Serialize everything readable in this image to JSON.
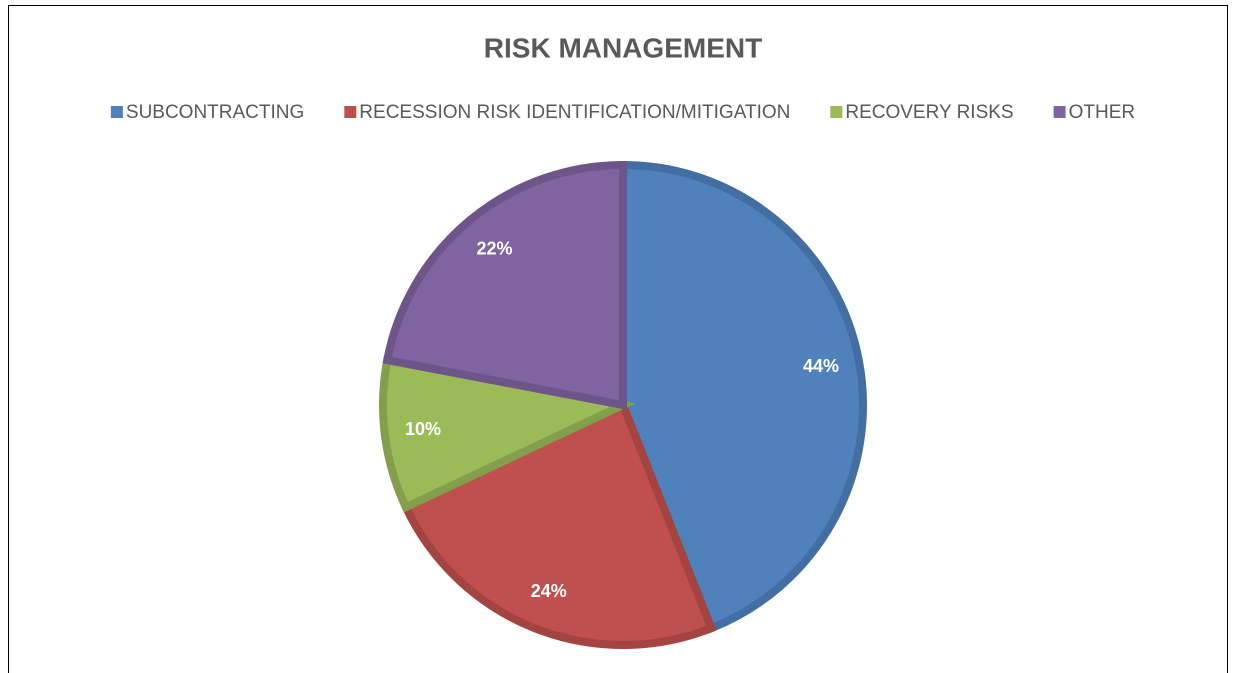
{
  "chart_data": {
    "type": "pie",
    "title": "RISK MANAGEMENT",
    "categories": [
      "SUBCONTRACTING",
      "RECESSION RISK IDENTIFICATION/MITIGATION",
      "RECOVERY RISKS",
      "OTHER"
    ],
    "values": [
      44,
      24,
      10,
      22
    ],
    "value_labels": [
      "44%",
      "24%",
      "10%",
      "22%"
    ],
    "colors": [
      "#4f81bd",
      "#c0504d",
      "#9bbb59",
      "#8064a2"
    ],
    "legend": "top"
  }
}
